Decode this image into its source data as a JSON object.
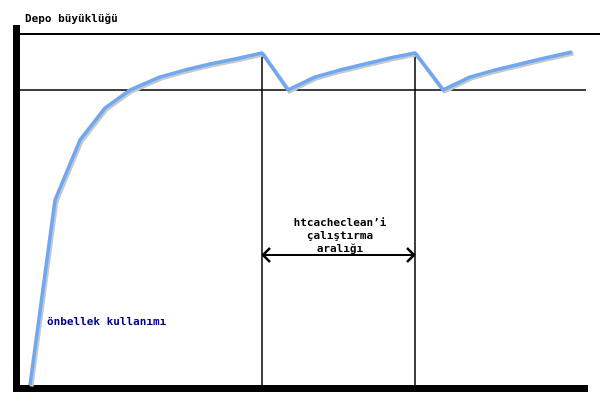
{
  "title": "Depo büyüklüğü",
  "interval_label": [
    "htcacheclean’i",
    "çalıştırma",
    "aralığı"
  ],
  "usage_label": "önbellek kullanımı",
  "colors": {
    "curve": "#6fa8f0",
    "axes": "#000000",
    "usage_label": "#000080"
  }
}
